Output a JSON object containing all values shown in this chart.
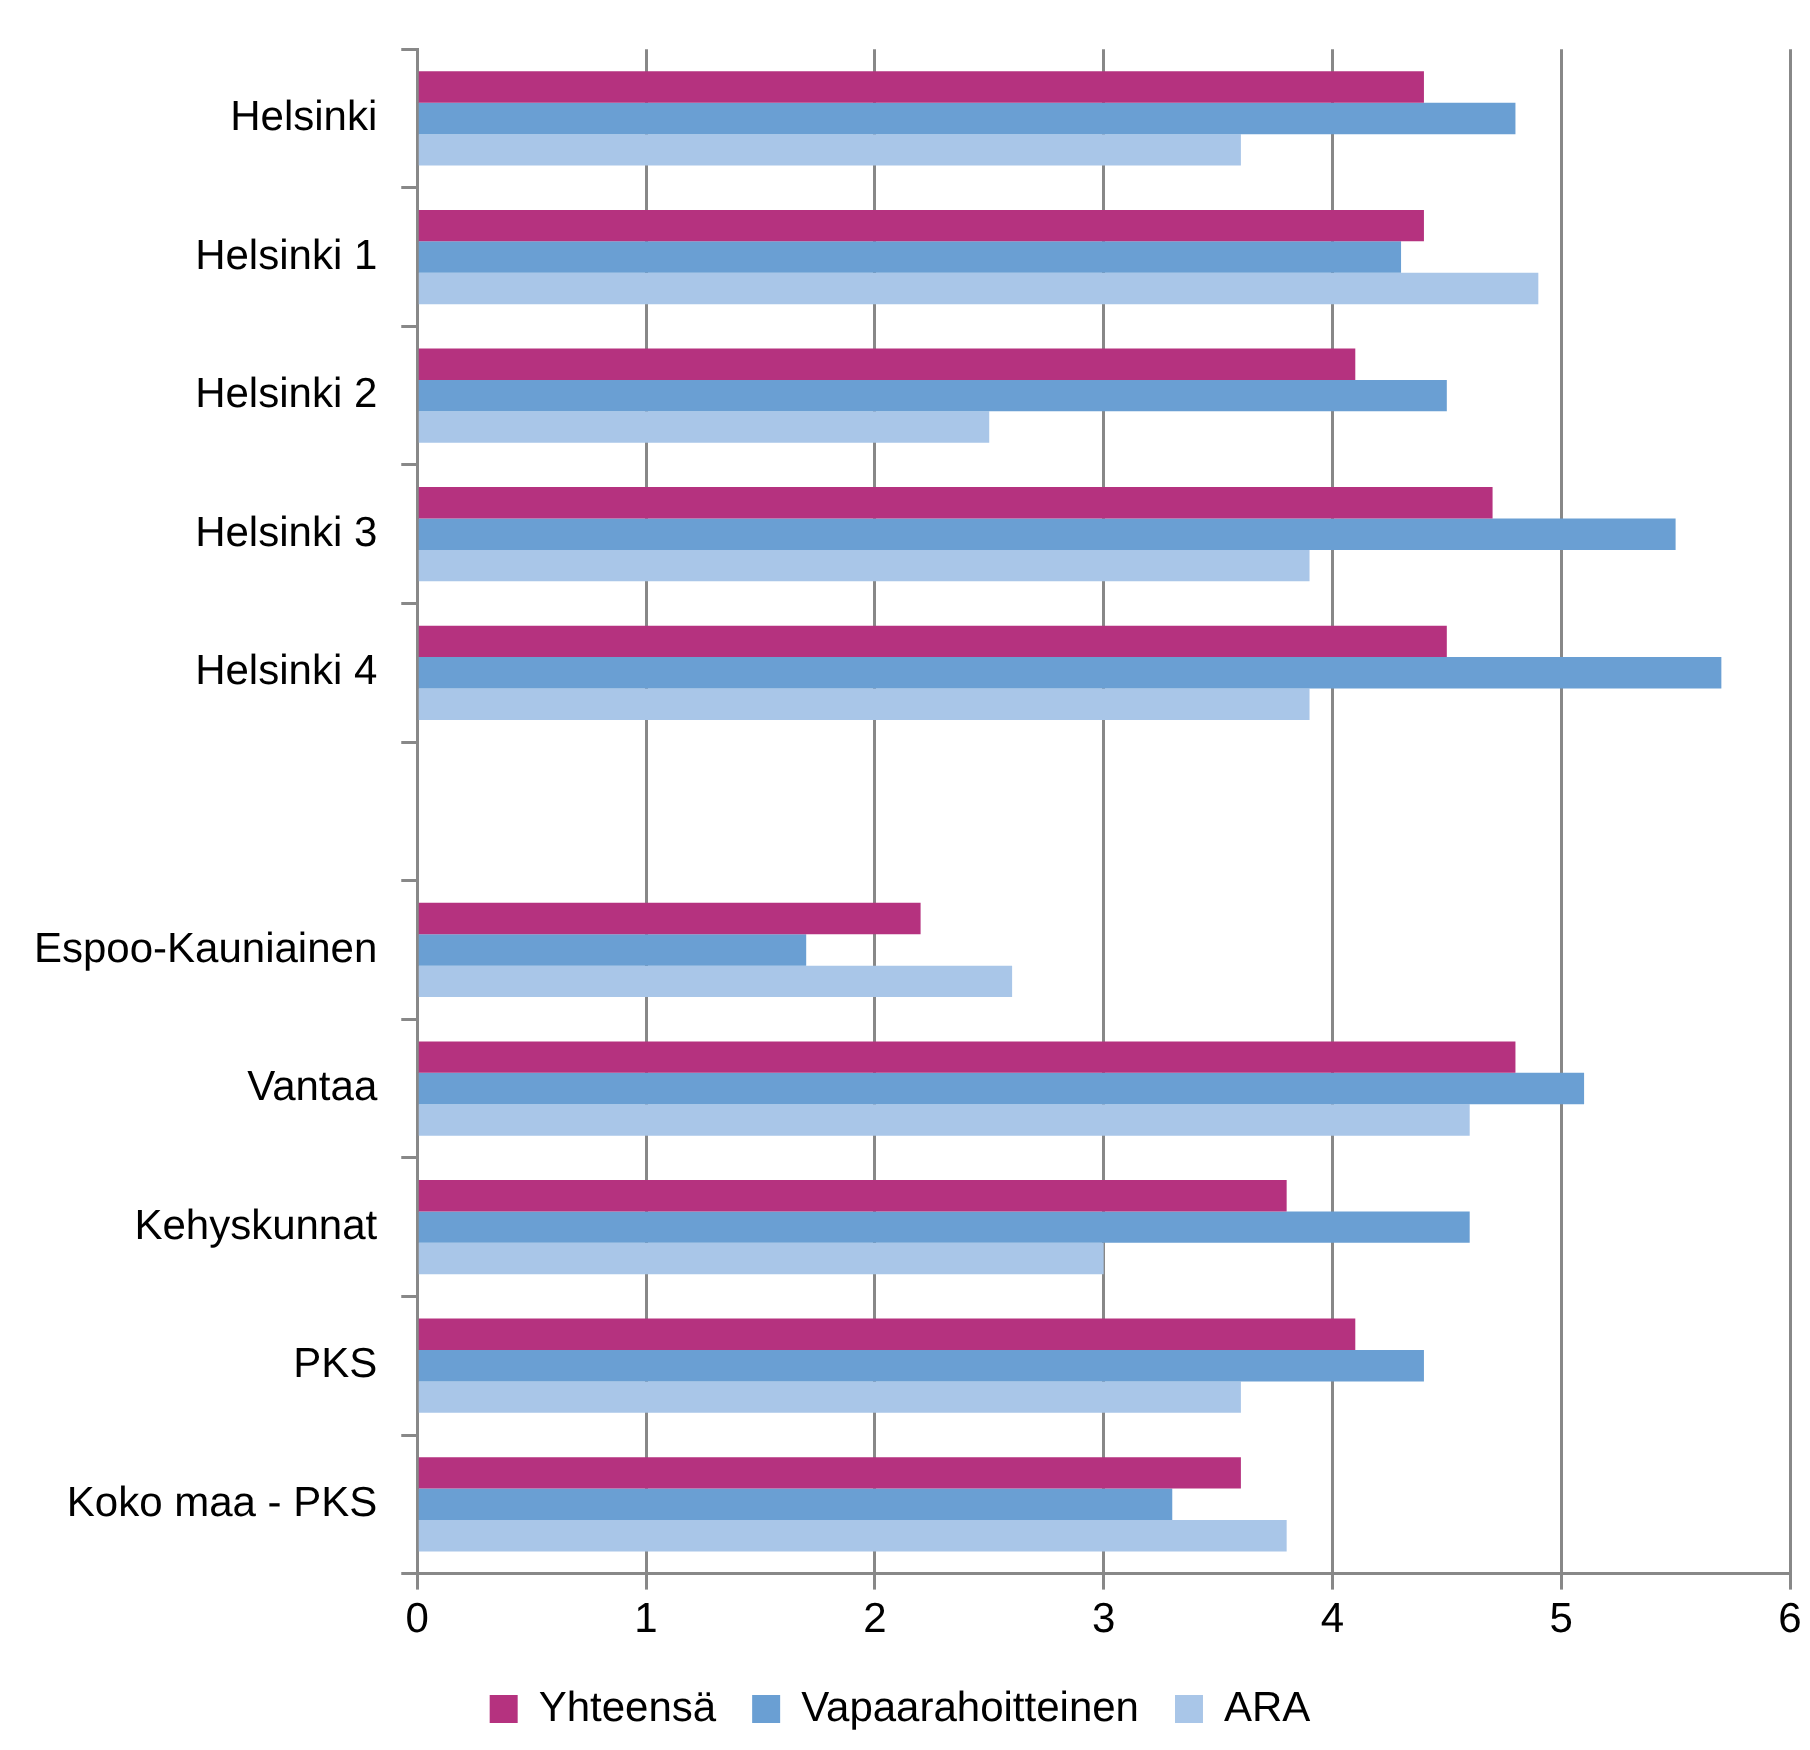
{
  "chart_data": {
    "type": "bar",
    "orientation": "horizontal",
    "categories": [
      "Helsinki",
      "Helsinki 1",
      "Helsinki 2",
      "Helsinki 3",
      "Helsinki 4",
      null,
      "Espoo-Kauniainen",
      "Vantaa",
      "Kehyskunnat",
      "PKS",
      "Koko maa - PKS"
    ],
    "series": [
      {
        "name": "Yhteensä",
        "color": "#b5327f",
        "values": [
          4.4,
          4.4,
          4.1,
          4.7,
          4.5,
          null,
          2.2,
          4.8,
          3.8,
          4.1,
          3.6
        ]
      },
      {
        "name": "Vapaarahoitteinen",
        "color": "#6a9fd3",
        "values": [
          4.8,
          4.3,
          4.5,
          5.5,
          5.7,
          null,
          1.7,
          5.1,
          4.6,
          4.4,
          3.3
        ]
      },
      {
        "name": "ARA",
        "color": "#a9c6e8",
        "values": [
          3.6,
          4.9,
          2.5,
          3.9,
          3.9,
          null,
          2.6,
          4.6,
          3.0,
          3.6,
          3.8
        ]
      }
    ],
    "xlim": [
      0,
      6
    ],
    "xticks": [
      0,
      1,
      2,
      3,
      4,
      5,
      6
    ],
    "grid": "x",
    "legend": "bottom"
  }
}
